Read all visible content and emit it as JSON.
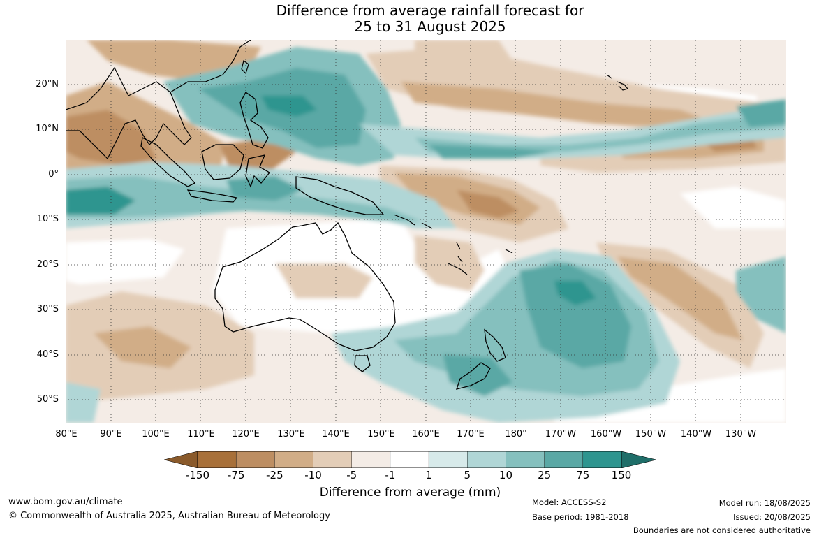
{
  "title": {
    "line1": "Difference from average rainfall forecast for",
    "line2": "25 to 31 August 2025"
  },
  "map": {
    "latitude_labels": [
      "20°N",
      "10°N",
      "0°",
      "10°S",
      "20°S",
      "30°S",
      "40°S",
      "50°S"
    ],
    "longitude_labels": [
      "80°E",
      "90°E",
      "100°E",
      "110°E",
      "120°E",
      "130°E",
      "140°E",
      "150°E",
      "160°E",
      "170°E",
      "180°",
      "170°W",
      "160°W",
      "150°W",
      "140°W",
      "130°W"
    ],
    "palette": {
      "dry_3": "#a87039",
      "dry_2": "#bd8e62",
      "dry_1": "#d1ad87",
      "dry_0": "#e3cdb7",
      "neutral_dry": "#f4ece6",
      "neutral": "#ffffff",
      "neutral_wet": "#d7eaea",
      "wet_0": "#b0d6d6",
      "wet_1": "#85c0be",
      "wet_2": "#5aa8a5",
      "wet_3": "#2e958f",
      "land_outline": "#000000",
      "border": "#777777"
    }
  },
  "legend": {
    "ticks": [
      "-150",
      "-75",
      "-25",
      "-10",
      "-5",
      "-1",
      "1",
      "5",
      "10",
      "25",
      "75",
      "150"
    ],
    "colors": [
      "#a87039",
      "#bd8e62",
      "#d1ad87",
      "#e3cdb7",
      "#f4ece6",
      "#ffffff",
      "#d7eaea",
      "#b0d6d6",
      "#85c0be",
      "#5aa8a5",
      "#2e958f"
    ],
    "end_low": "#8a5a2b",
    "end_high": "#1f6e69",
    "label": "Difference from average (mm)"
  },
  "footer": {
    "website": "www.bom.gov.au/climate",
    "copyright": "© Commonwealth of Australia 2025, Australian Bureau of Meteorology",
    "model": "Model: ACCESS-S2",
    "base_period": "Base period: 1981-2018",
    "model_run": "Model run: 18/08/2025",
    "issued": "Issued: 20/08/2025",
    "disclaimer": "Boundaries are not considered authoritative"
  }
}
